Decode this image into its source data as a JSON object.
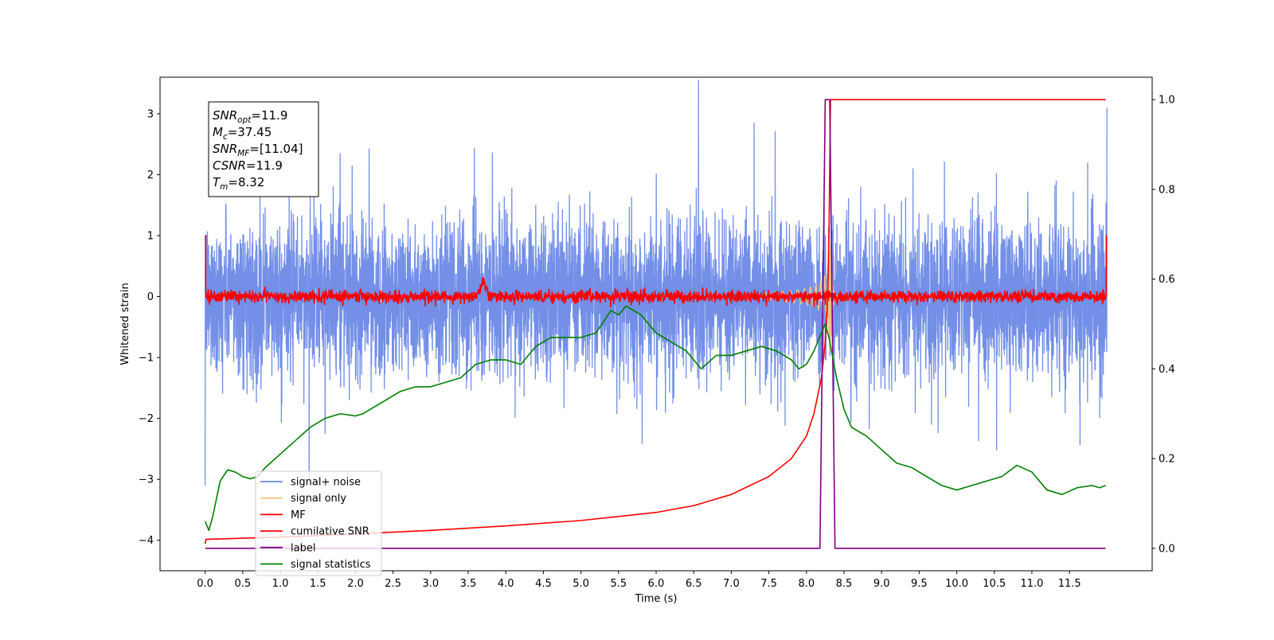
{
  "chart_data": {
    "type": "line",
    "title": "",
    "xlabel": "Time (s)",
    "ylabel": "Whitened strain",
    "xlim": [
      -0.6,
      12.6
    ],
    "ylim": [
      -4.5,
      3.6
    ],
    "y2lim": [
      -0.05,
      1.05
    ],
    "xticks": [
      0.0,
      0.5,
      1.0,
      1.5,
      2.0,
      2.5,
      3.0,
      3.5,
      4.0,
      4.5,
      5.0,
      5.5,
      6.0,
      6.5,
      7.0,
      7.5,
      8.0,
      8.5,
      9.0,
      9.5,
      10.0,
      10.5,
      11.0,
      11.5
    ],
    "xtick_labels": [
      "0.0",
      "0.5",
      "1.0",
      "1.5",
      "2.0",
      "2.5",
      "3.0",
      "3.5",
      "4.0",
      "4.5",
      "5.0",
      "5.5",
      "6.0",
      "6.5",
      "7.0",
      "7.5",
      "8.0",
      "8.5",
      "9.0",
      "9.5",
      "10.0",
      "10.5",
      "11.0",
      "11.5"
    ],
    "yticks": [
      -4,
      -3,
      -2,
      -1,
      0,
      1,
      2,
      3
    ],
    "ytick_labels": [
      "−4",
      "−3",
      "−2",
      "−1",
      "0",
      "1",
      "2",
      "3"
    ],
    "y2ticks": [
      0.0,
      0.2,
      0.4,
      0.6,
      0.8,
      1.0
    ],
    "y2tick_labels": [
      "0.0",
      "0.2",
      "0.4",
      "0.6",
      "0.8",
      "1.0"
    ],
    "grid": false,
    "legend_position": "lower-left",
    "series": [
      {
        "name": "signal+ noise",
        "axis": "left",
        "color": "#6b89e6",
        "kind": "noise",
        "sigma": 0.62,
        "duration": 12.0,
        "points": 6000
      },
      {
        "name": "signal only",
        "axis": "left",
        "color": "#f5c878",
        "kind": "chirp",
        "merger_time": 8.32,
        "peak_amplitude": 1.0
      },
      {
        "name": "MF",
        "axis": "left",
        "color": "#ff0000",
        "kind": "noise",
        "sigma": 0.05,
        "endpoint_value": 1.0,
        "bump_center": 3.7,
        "bump_height": 0.25
      },
      {
        "name": "cumilative SNR",
        "axis": "right",
        "color": "#ff0000",
        "x": [
          0.0,
          0.01,
          1.0,
          2.0,
          3.0,
          4.0,
          5.0,
          6.0,
          6.5,
          7.0,
          7.5,
          7.8,
          8.0,
          8.1,
          8.2,
          8.25,
          8.28,
          8.3,
          8.32,
          11.98
        ],
        "y": [
          0.01,
          0.02,
          0.025,
          0.032,
          0.04,
          0.05,
          0.062,
          0.08,
          0.095,
          0.12,
          0.16,
          0.2,
          0.25,
          0.3,
          0.38,
          0.46,
          0.55,
          0.7,
          1.0,
          1.0
        ]
      },
      {
        "name": "label",
        "axis": "right",
        "color": "#800080",
        "x": [
          0.0,
          8.18,
          8.25,
          8.31,
          8.38,
          11.98
        ],
        "y": [
          0.0,
          0.0,
          1.0,
          1.0,
          0.0,
          0.0
        ]
      },
      {
        "name": "signal statistics",
        "axis": "right",
        "color": "#008000",
        "x": [
          0.0,
          0.05,
          0.1,
          0.2,
          0.3,
          0.4,
          0.5,
          0.6,
          0.7,
          0.8,
          1.0,
          1.2,
          1.4,
          1.6,
          1.8,
          2.0,
          2.1,
          2.2,
          2.4,
          2.6,
          2.8,
          3.0,
          3.2,
          3.4,
          3.6,
          3.8,
          4.0,
          4.2,
          4.4,
          4.6,
          4.8,
          5.0,
          5.2,
          5.4,
          5.5,
          5.6,
          5.8,
          6.0,
          6.2,
          6.4,
          6.6,
          6.8,
          7.0,
          7.2,
          7.4,
          7.6,
          7.8,
          7.9,
          8.0,
          8.1,
          8.2,
          8.25,
          8.3,
          8.4,
          8.5,
          8.6,
          8.8,
          9.0,
          9.2,
          9.4,
          9.6,
          9.8,
          10.0,
          10.2,
          10.4,
          10.6,
          10.8,
          11.0,
          11.2,
          11.4,
          11.6,
          11.8,
          11.9,
          11.98
        ],
        "y": [
          0.06,
          0.04,
          0.07,
          0.15,
          0.175,
          0.17,
          0.16,
          0.155,
          0.16,
          0.18,
          0.21,
          0.24,
          0.27,
          0.29,
          0.3,
          0.295,
          0.3,
          0.31,
          0.33,
          0.35,
          0.36,
          0.36,
          0.37,
          0.38,
          0.41,
          0.42,
          0.42,
          0.41,
          0.45,
          0.47,
          0.47,
          0.47,
          0.48,
          0.53,
          0.52,
          0.54,
          0.52,
          0.48,
          0.46,
          0.44,
          0.4,
          0.43,
          0.43,
          0.44,
          0.45,
          0.44,
          0.42,
          0.4,
          0.41,
          0.44,
          0.48,
          0.5,
          0.47,
          0.38,
          0.31,
          0.27,
          0.25,
          0.22,
          0.19,
          0.18,
          0.16,
          0.14,
          0.13,
          0.14,
          0.15,
          0.16,
          0.185,
          0.17,
          0.13,
          0.12,
          0.135,
          0.14,
          0.135,
          0.14
        ]
      }
    ],
    "annotation": {
      "lines": [
        {
          "base": "SNR",
          "sub": "opt",
          "value": "=11.9"
        },
        {
          "base": "M",
          "sub": "c",
          "value": "=37.45"
        },
        {
          "base": "SNR",
          "sub": "MF",
          "value": "=[11.04]"
        },
        {
          "base": "CSNR",
          "sub": "",
          "value": "=11.9"
        },
        {
          "base": "T",
          "sub": "m",
          "value": "=8.32"
        }
      ]
    }
  }
}
